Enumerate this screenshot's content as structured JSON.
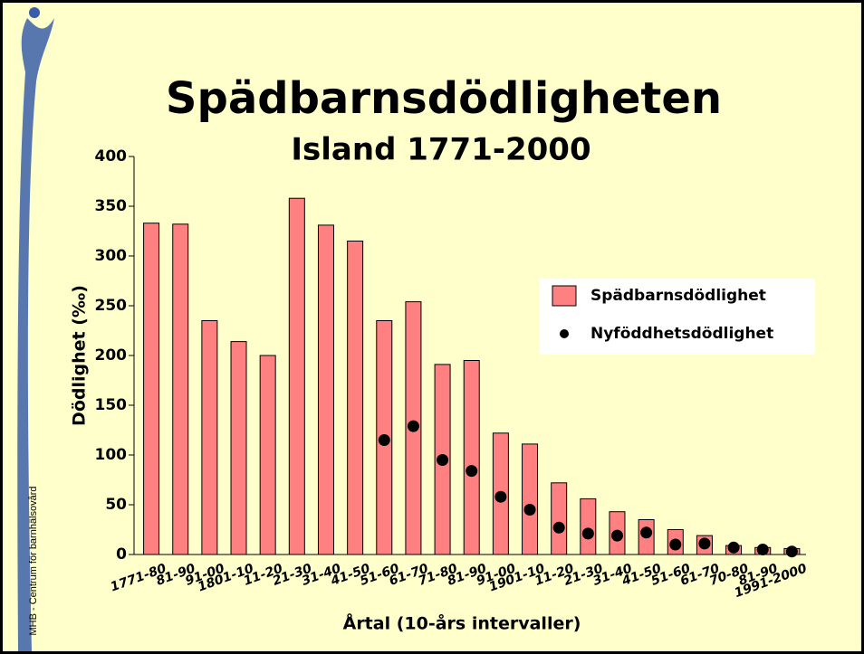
{
  "side_text": "MHB - Centrum för barnhälsovård",
  "chart_data": {
    "type": "bar",
    "title": "Spädbarnsdödligheten",
    "subtitle": "Island 1771-2000",
    "y_label": "Dödlighet (‰)",
    "x_label": "Årtal (10-års intervaller)",
    "categories": [
      "1771-80",
      "81-90",
      "91-00",
      "1801-10",
      "11-20",
      "21-30",
      "31-40",
      "41-50",
      "51-60",
      "61-70",
      "71-80",
      "81-90",
      "91-00",
      "1901-10",
      "11-20",
      "21-30",
      "31-40",
      "41-50",
      "51-60",
      "61-70",
      "70-80",
      "81-90",
      "1991-2000"
    ],
    "series": [
      {
        "name": "Spädbarnsdödlighet",
        "style": "bar",
        "color": "#ff8080",
        "values": [
          333,
          332,
          235,
          214,
          200,
          358,
          331,
          315,
          235,
          254,
          191,
          195,
          122,
          111,
          72,
          56,
          43,
          35,
          25,
          19,
          9,
          7,
          6
        ]
      },
      {
        "name": "Nyföddhetsdödlighet",
        "style": "dot",
        "color": "#000000",
        "values": [
          null,
          null,
          null,
          null,
          null,
          null,
          null,
          null,
          115,
          129,
          95,
          84,
          58,
          45,
          27,
          21,
          19,
          22,
          10,
          11,
          7,
          5,
          3
        ]
      }
    ],
    "ylim": [
      0,
      400
    ],
    "yticks": [
      0,
      50,
      100,
      150,
      200,
      250,
      300,
      350,
      400
    ],
    "legend": "right"
  }
}
